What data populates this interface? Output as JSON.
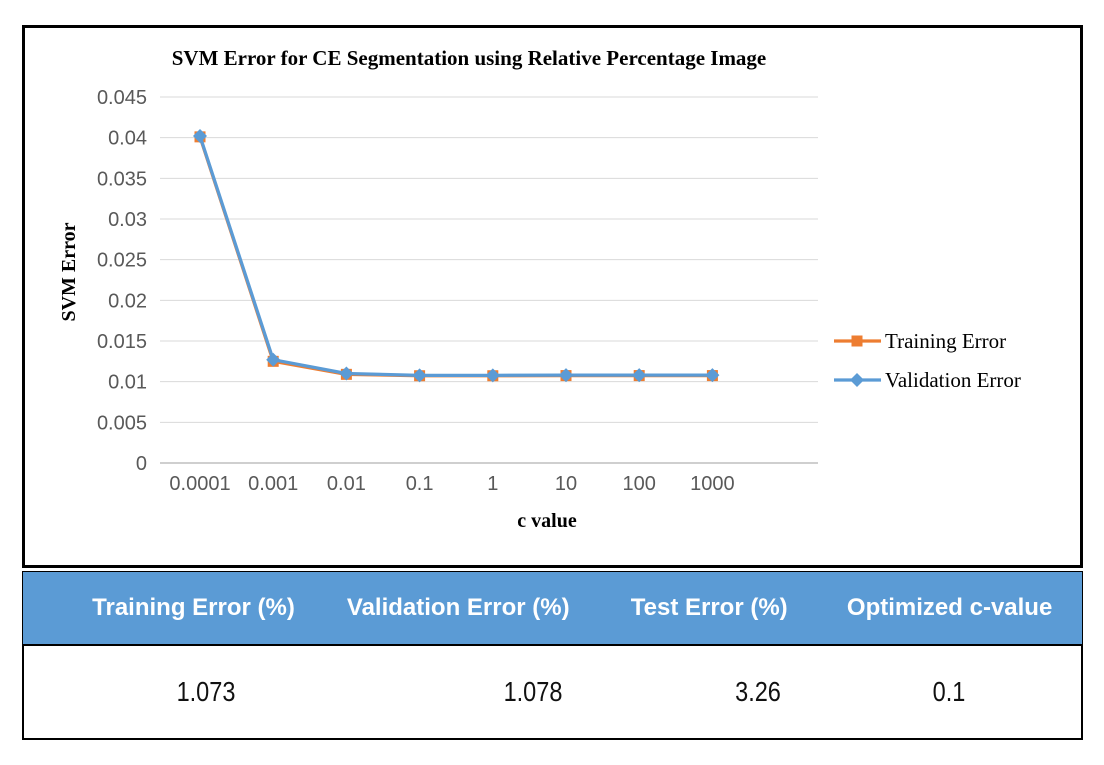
{
  "chart": {
    "title": "SVM  Error for CE Segmentation using Relative Percentage Image",
    "x_axis_title": "c value",
    "y_axis_title": "SVM Error"
  },
  "chart_data": {
    "type": "line",
    "title": "SVM  Error for CE Segmentation using Relative Percentage Image",
    "xlabel": "c value",
    "ylabel": "SVM Error",
    "x_scale": "categorical-log",
    "categories": [
      "0.0001",
      "0.001",
      "0.01",
      "0.1",
      "1",
      "10",
      "100",
      "1000"
    ],
    "series": [
      {
        "name": "Training Error",
        "color": "#ED7D31",
        "marker": "square",
        "values": [
          0.0401,
          0.0125,
          0.0109,
          0.01073,
          0.01073,
          0.01075,
          0.01075,
          0.01075
        ]
      },
      {
        "name": "Validation Error",
        "color": "#5B9BD5",
        "marker": "diamond",
        "values": [
          0.0402,
          0.0127,
          0.011,
          0.01078,
          0.01078,
          0.0108,
          0.0108,
          0.0108
        ]
      }
    ],
    "ylim": [
      0,
      0.045
    ],
    "y_tick_labels": [
      "0",
      "0.005",
      "0.01",
      "0.015",
      "0.02",
      "0.025",
      "0.03",
      "0.035",
      "0.04",
      "0.045"
    ],
    "grid": "horizontal",
    "legend_position": "right"
  },
  "colors": {
    "gridline": "#D9D9D9",
    "axis_line": "#BFBFBF",
    "tick_text": "#595959",
    "table_header_bg": "#5B9BD5",
    "table_header_text": "#FFFFFF"
  },
  "table": {
    "headers": [
      "Training Error (%)",
      "Validation Error  (%)",
      "Test Error (%)",
      "Optimized c-value"
    ],
    "values": [
      "1.073",
      "1.078",
      "3.26",
      "0.1"
    ]
  }
}
